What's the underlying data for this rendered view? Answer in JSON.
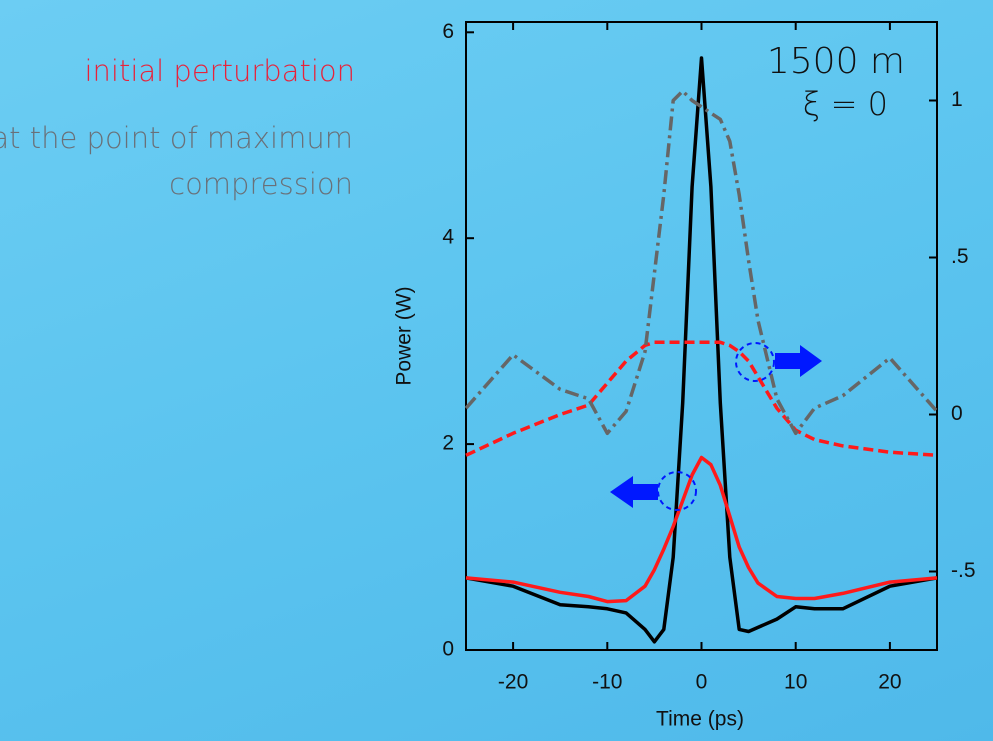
{
  "slide": {
    "caption_red": "initial perturbation",
    "caption_gray_1": "at the point of maximum",
    "caption_gray_2": "compression"
  },
  "chart_data": {
    "type": "line",
    "x_label": "Time (ps)",
    "y_label": "Power (W)",
    "annotations": [
      "1500 m",
      "ξ = 0"
    ],
    "x": [
      -25,
      -20,
      -15,
      -12,
      -10,
      -8,
      -6,
      -5,
      -4,
      -3,
      -2,
      -1,
      0,
      1,
      2,
      3,
      4,
      5,
      6,
      8,
      10,
      12,
      15,
      20,
      25
    ],
    "series": [
      {
        "color": "#000000",
        "style": "solid",
        "axis": "y",
        "values": [
          0.7,
          0.62,
          0.44,
          0.42,
          0.4,
          0.36,
          0.2,
          0.08,
          0.2,
          0.9,
          2.4,
          4.5,
          5.75,
          4.5,
          2.4,
          0.9,
          0.2,
          0.18,
          0.22,
          0.3,
          0.42,
          0.4,
          0.4,
          0.62,
          0.7
        ]
      },
      {
        "color": "#ff1a1a",
        "style": "solid",
        "axis": "y",
        "values": [
          0.7,
          0.66,
          0.56,
          0.52,
          0.47,
          0.48,
          0.62,
          0.78,
          0.98,
          1.2,
          1.45,
          1.7,
          1.87,
          1.8,
          1.6,
          1.3,
          1.0,
          0.8,
          0.65,
          0.52,
          0.5,
          0.5,
          0.55,
          0.66,
          0.7
        ]
      },
      {
        "color": "#ff1a1a",
        "style": "dashed",
        "axis": "y2",
        "values": [
          -0.13,
          -0.06,
          0,
          0.03,
          0.1,
          0.17,
          0.22,
          0.23,
          0.23,
          0.23,
          0.23,
          0.23,
          0.23,
          0.23,
          0.23,
          0.22,
          0.2,
          0.17,
          0.12,
          0.02,
          -0.05,
          -0.08,
          -0.1,
          -0.12,
          -0.13
        ]
      },
      {
        "color": "#666666",
        "style": "dashdot",
        "axis": "y2",
        "values": [
          0.02,
          0.19,
          0.08,
          0.05,
          -0.06,
          0.01,
          0.2,
          0.45,
          0.7,
          1.0,
          1.03,
          1.0,
          0.98,
          0.96,
          0.94,
          0.87,
          0.7,
          0.49,
          0.3,
          0.05,
          -0.06,
          0.02,
          0.06,
          0.18,
          0.01
        ]
      }
    ],
    "xlim": [
      -25,
      25
    ],
    "xticks": [
      -20,
      -10,
      0,
      10,
      20
    ],
    "ylim": [
      0,
      6.1
    ],
    "yticks": [
      0,
      2,
      4,
      6
    ],
    "y2lim": [
      -0.75,
      1.25
    ],
    "y2ticks": [
      {
        "value": -0.5,
        "label": "-.5"
      },
      0,
      {
        "value": 0.5,
        "label": ".5"
      },
      1
    ]
  }
}
